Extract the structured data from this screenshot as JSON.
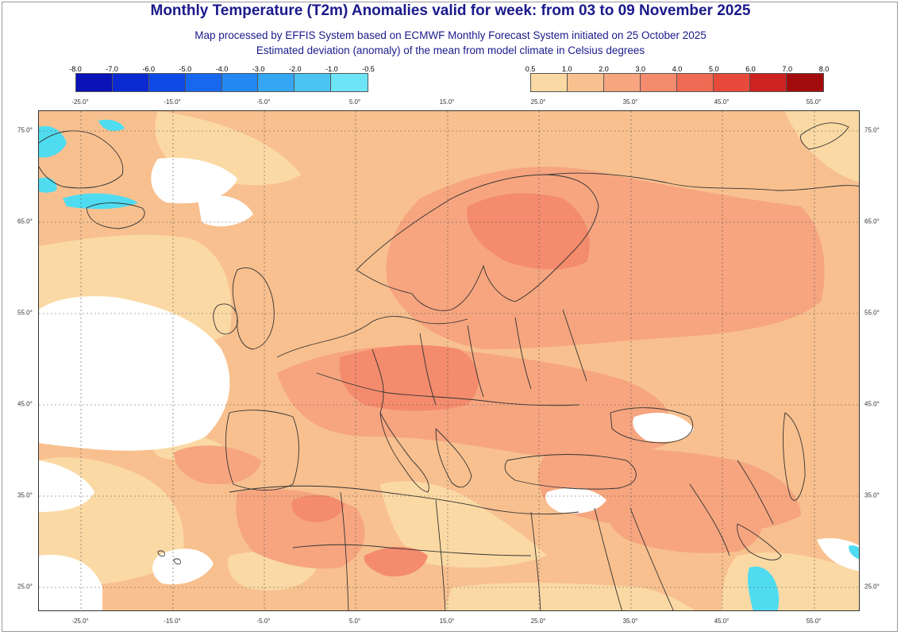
{
  "header": {
    "title": "Monthly Temperature (T2m) Anomalies valid for week: from 03 to 09 November 2025",
    "subtitle1": "Map processed by EFFIS System based on ECMWF Monthly Forecast System initiated on 25 October 2025",
    "subtitle2": "Estimated deviation (anomaly) of the mean from model climate in Celsius degrees"
  },
  "legend_negative": {
    "labels": [
      "-8.0",
      "-7.0",
      "-6.0",
      "-5.0",
      "-4.0",
      "-3.0",
      "-2.0",
      "-1.0",
      "-0.5"
    ],
    "colors": [
      "#0a12b8",
      "#0b2ad2",
      "#0f49e6",
      "#1768ee",
      "#2488f2",
      "#35a6f2",
      "#4cc4f2",
      "#6ee4f7"
    ]
  },
  "legend_positive": {
    "labels": [
      "0.5",
      "1.0",
      "2.0",
      "3.0",
      "4.0",
      "5.0",
      "6.0",
      "7.0",
      "8.0"
    ],
    "colors": [
      "#fbd9a4",
      "#f8c08f",
      "#f6a57f",
      "#f38b6c",
      "#ef6b53",
      "#e74a3b",
      "#cc2222",
      "#a30c0c"
    ]
  },
  "axes": {
    "lon_labels": [
      "-25.0°",
      "-15.0°",
      "-5.0°",
      "5.0°",
      "15.0°",
      "25.0°",
      "35.0°",
      "45.0°",
      "55.0°"
    ],
    "lat_labels": [
      "75.0°",
      "65.0°",
      "55.0°",
      "45.0°",
      "35.0°",
      "25.0°"
    ]
  },
  "map_colors": {
    "ocean_anomaly": "#f8c08f",
    "light": "#fbd9a4",
    "medium": "#f6a57f",
    "strong": "#f38b6c",
    "neutral": "#ffffff",
    "cold": "#4fdcf0",
    "coast": "#333333",
    "grid": "#555555"
  }
}
